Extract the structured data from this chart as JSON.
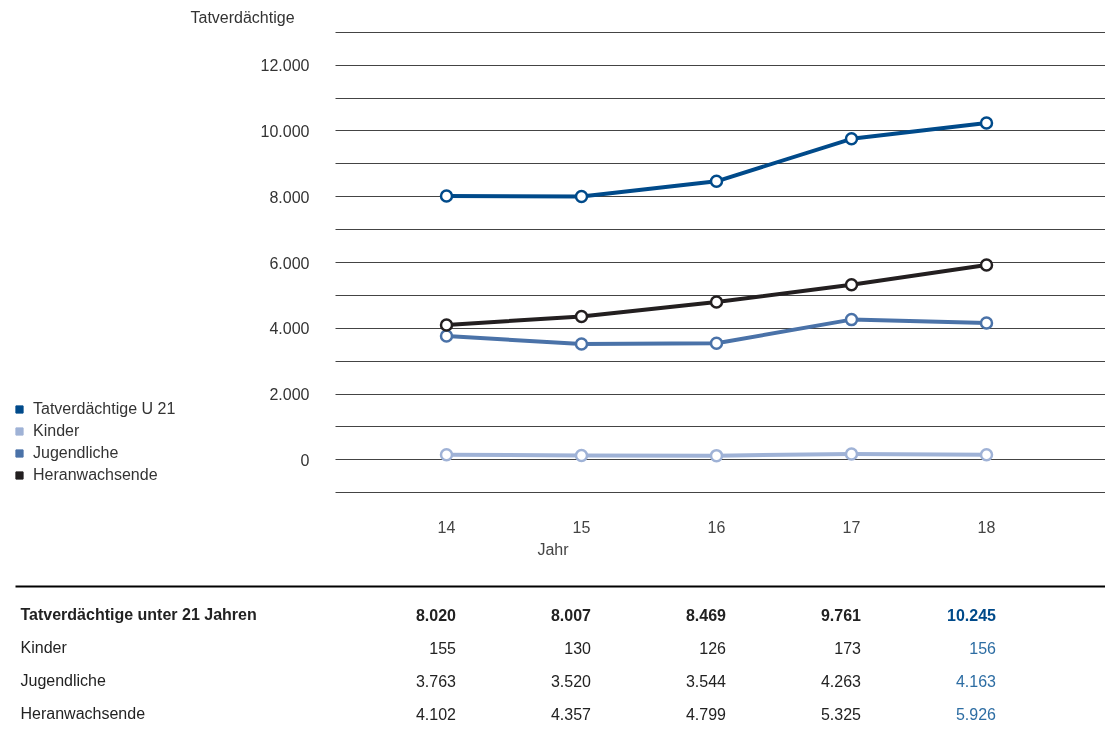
{
  "chart_data": {
    "type": "line",
    "ylabel": "Tatverdächtige",
    "xlabel": "Jahr",
    "categories": [
      "14",
      "15",
      "16",
      "17",
      "18"
    ],
    "series": [
      {
        "name": "Tatverdächtige U 21",
        "color": "#004a8a",
        "values": [
          8020,
          8007,
          8469,
          9761,
          10245
        ],
        "value_labels": [
          "8.020",
          "8.007",
          "8.469",
          "9.761",
          "10.245"
        ]
      },
      {
        "name": "Kinder",
        "color": "#9fb2d6",
        "values": [
          155,
          130,
          126,
          173,
          156
        ],
        "value_labels": [
          "155",
          "130",
          "126",
          "173",
          "156"
        ]
      },
      {
        "name": "Jugendliche",
        "color": "#4a72a8",
        "values": [
          3763,
          3520,
          3544,
          4263,
          4163
        ],
        "value_labels": [
          "3.763",
          "3.520",
          "3.544",
          "4.263",
          "4.163"
        ]
      },
      {
        "name": "Heranwachsende",
        "color": "#231f20",
        "values": [
          4102,
          4357,
          4799,
          5325,
          5926
        ],
        "value_labels": [
          "4.102",
          "4.357",
          "4.799",
          "5.325",
          "5.926"
        ]
      }
    ],
    "ylim": [
      -1000,
      13000
    ],
    "yticks": [
      {
        "value": -1000,
        "label": null
      },
      {
        "value": 0,
        "label": "0"
      },
      {
        "value": 1000,
        "label": null
      },
      {
        "value": 2000,
        "label": "2.000"
      },
      {
        "value": 3000,
        "label": null
      },
      {
        "value": 4000,
        "label": "4.000"
      },
      {
        "value": 5000,
        "label": null
      },
      {
        "value": 6000,
        "label": "6.000"
      },
      {
        "value": 7000,
        "label": null
      },
      {
        "value": 8000,
        "label": "8.000"
      },
      {
        "value": 9000,
        "label": null
      },
      {
        "value": 10000,
        "label": "10.000"
      },
      {
        "value": 11000,
        "label": null
      },
      {
        "value": 12000,
        "label": "12.000"
      },
      {
        "value": 13000,
        "label": null
      }
    ],
    "grid": "y",
    "legend": "bottom left",
    "marker": "circle",
    "line_style": "solid",
    "annotations": [
      "Tatverdächtige unter 21 Jahren"
    ]
  }
}
